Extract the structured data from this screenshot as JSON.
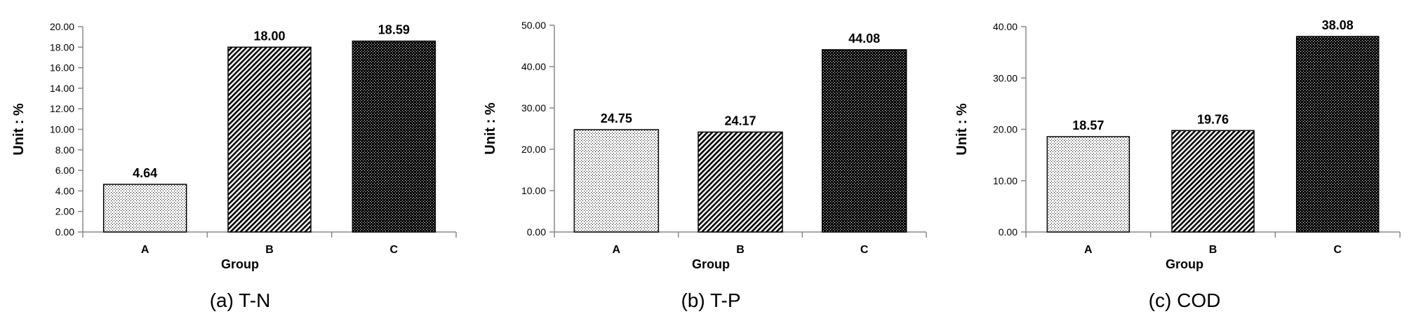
{
  "chart_data": [
    {
      "type": "bar",
      "caption": "(a) T-N",
      "categories": [
        "A",
        "B",
        "C"
      ],
      "values": [
        4.64,
        18.0,
        18.59
      ],
      "value_labels": [
        "4.64",
        "18.00",
        "18.59"
      ],
      "xlabel": "Group",
      "ylabel": "Unit : %",
      "ylim": [
        0,
        20
      ],
      "yticks": [
        "0.00",
        "2.00",
        "4.00",
        "6.00",
        "8.00",
        "10.00",
        "12.00",
        "14.00",
        "16.00",
        "18.00",
        "20.00"
      ],
      "grid": false,
      "legend": "none",
      "bar_fills": [
        "light-dot",
        "diagonal-hatch",
        "dense-dot-black"
      ]
    },
    {
      "type": "bar",
      "caption": "(b) T-P",
      "categories": [
        "A",
        "B",
        "C"
      ],
      "values": [
        24.75,
        24.17,
        44.08
      ],
      "value_labels": [
        "24.75",
        "24.17",
        "44.08"
      ],
      "xlabel": "Group",
      "ylabel": "Unit : %",
      "ylim": [
        0,
        50
      ],
      "yticks": [
        "0.00",
        "10.00",
        "20.00",
        "30.00",
        "40.00",
        "50.00"
      ],
      "grid": false,
      "legend": "none",
      "bar_fills": [
        "light-dot",
        "diagonal-hatch",
        "dense-dot-black"
      ]
    },
    {
      "type": "bar",
      "caption": "(c) COD",
      "categories": [
        "A",
        "B",
        "C"
      ],
      "values": [
        18.57,
        19.76,
        38.08
      ],
      "value_labels": [
        "18.57",
        "19.76",
        "38.08"
      ],
      "xlabel": "Group",
      "ylabel": "Unit : %",
      "ylim": [
        0,
        40
      ],
      "yticks": [
        "0.00",
        "10.00",
        "20.00",
        "30.00",
        "40.00"
      ],
      "grid": false,
      "legend": "none",
      "bar_fills": [
        "light-dot",
        "diagonal-hatch",
        "dense-dot-black"
      ]
    }
  ],
  "colors": {
    "axis": "#888888",
    "text": "#000000",
    "bar_border": "#000000",
    "background": "#ffffff"
  }
}
